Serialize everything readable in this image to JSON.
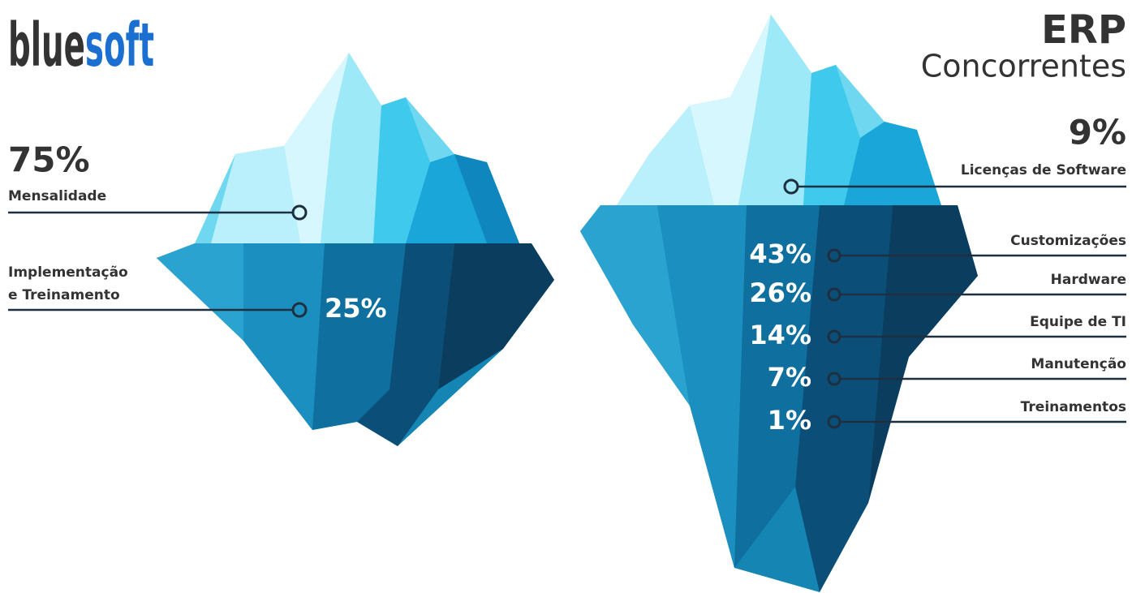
{
  "logo": {
    "part1": "blue",
    "part2": "soft"
  },
  "left": {
    "items": [
      {
        "value": "75%",
        "label": [
          "Mensalidade"
        ]
      },
      {
        "value": "25%",
        "label": [
          "Implementação",
          "e Treinamento"
        ]
      }
    ]
  },
  "right": {
    "title": "ERP",
    "subtitle": "Concorrentes",
    "top": {
      "value": "9%",
      "label": "Licenças de Software"
    },
    "items": [
      {
        "value": "43%",
        "label": "Customizações"
      },
      {
        "value": "26%",
        "label": "Hardware"
      },
      {
        "value": "14%",
        "label": "Equipe de TI"
      },
      {
        "value": "7%",
        "label": "Manutenção"
      },
      {
        "value": "1%",
        "label": "Treinamentos"
      }
    ]
  }
}
